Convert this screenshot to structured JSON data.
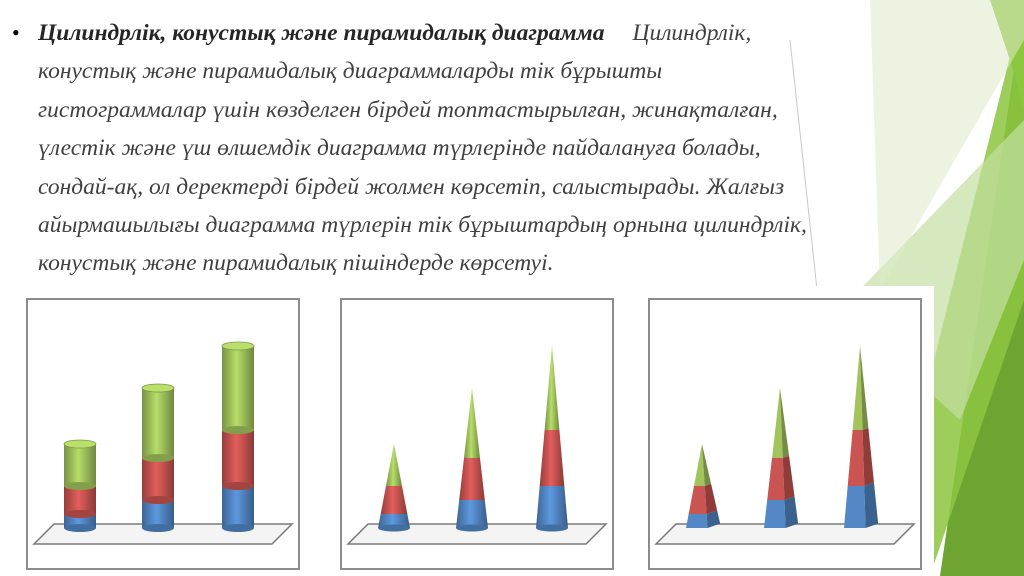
{
  "slide": {
    "title": "Цилиндрлік, конустық және пирамидалық диаграмма",
    "body_lines": [
      "Цилиндрлік,",
      "конустық және пирамидалық диаграммаларды тік бұрышты",
      "гистограммалар үшін көзделген бірдей топтастырылған, жинақталған,",
      "үлестік және үш өлшемдік диаграмма түрлерінде пайдалануға болады,",
      "сондай-ақ, ол деректерді бірдей жолмен көрсетіп, салыстырады. Жалғыз",
      "айырмашылығы диаграмма түрлерін тік бұрыштардың орнына цилиндрлік,",
      "конустық және пирамидалық пішіндерде көрсетуі."
    ]
  },
  "colors": {
    "series": [
      "#4f81bd",
      "#c0504d",
      "#9bbb59"
    ],
    "accent_green": "#8cc63f",
    "text": "#404040"
  },
  "chart_data": [
    {
      "type": "bar",
      "shape": "cylinder",
      "stacked": true,
      "categories": [
        "",
        "",
        ""
      ],
      "series": [
        {
          "values": [
            1,
            2,
            3
          ]
        },
        {
          "values": [
            2,
            3,
            4
          ]
        },
        {
          "values": [
            3,
            5,
            6
          ]
        }
      ],
      "ylim": [
        0,
        15
      ],
      "axes": "hidden",
      "legend": "none"
    },
    {
      "type": "bar",
      "shape": "cone",
      "stacked": true,
      "categories": [
        "",
        "",
        ""
      ],
      "series": [
        {
          "values": [
            1,
            2,
            3
          ]
        },
        {
          "values": [
            2,
            3,
            4
          ]
        },
        {
          "values": [
            3,
            5,
            6
          ]
        }
      ],
      "ylim": [
        0,
        15
      ],
      "axes": "hidden",
      "legend": "none"
    },
    {
      "type": "bar",
      "shape": "pyramid",
      "stacked": true,
      "categories": [
        "",
        "",
        ""
      ],
      "series": [
        {
          "values": [
            1,
            2,
            3
          ]
        },
        {
          "values": [
            2,
            3,
            4
          ]
        },
        {
          "values": [
            3,
            5,
            6
          ]
        }
      ],
      "ylim": [
        0,
        15
      ],
      "axes": "hidden",
      "legend": "none"
    }
  ]
}
